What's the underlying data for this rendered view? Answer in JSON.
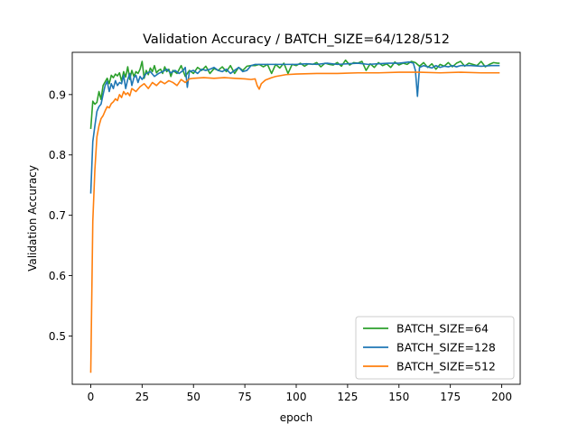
{
  "chart_data": {
    "type": "line",
    "title": "Validation Accuracy / BATCH_SIZE=64/128/512",
    "xlabel": "epoch",
    "ylabel": "Validation Accuracy",
    "xlim": [
      -9,
      209
    ],
    "ylim": [
      0.42,
      0.97
    ],
    "xticks": [
      0,
      25,
      50,
      75,
      100,
      125,
      150,
      175,
      200
    ],
    "yticks": [
      0.5,
      0.6,
      0.7,
      0.8,
      0.9
    ],
    "grid": false,
    "legend": "lower-right",
    "series": [
      {
        "name": "BATCH_SIZE=64",
        "color": "#2ca02c",
        "x": [
          0,
          1,
          2,
          3,
          4,
          5,
          6,
          7,
          8,
          9,
          10,
          11,
          12,
          13,
          14,
          15,
          16,
          17,
          18,
          19,
          20,
          21,
          22,
          23,
          24,
          25,
          26,
          27,
          28,
          29,
          30,
          31,
          32,
          33,
          34,
          35,
          36,
          37,
          38,
          39,
          40,
          42,
          44,
          46,
          48,
          50,
          52,
          54,
          56,
          58,
          60,
          62,
          64,
          66,
          68,
          70,
          72,
          74,
          76,
          78,
          80,
          82,
          84,
          86,
          88,
          90,
          92,
          94,
          96,
          98,
          100,
          102,
          104,
          106,
          108,
          110,
          112,
          114,
          116,
          118,
          120,
          122,
          124,
          126,
          128,
          130,
          132,
          134,
          136,
          138,
          140,
          142,
          144,
          146,
          148,
          150,
          152,
          154,
          156,
          158,
          160,
          162,
          164,
          166,
          168,
          170,
          172,
          174,
          176,
          178,
          180,
          182,
          184,
          186,
          188,
          190,
          192,
          194,
          196,
          198,
          199
        ],
        "y": [
          0.843,
          0.889,
          0.884,
          0.887,
          0.905,
          0.892,
          0.915,
          0.921,
          0.927,
          0.918,
          0.932,
          0.928,
          0.934,
          0.931,
          0.936,
          0.922,
          0.938,
          0.929,
          0.946,
          0.925,
          0.94,
          0.93,
          0.938,
          0.935,
          0.942,
          0.955,
          0.927,
          0.94,
          0.933,
          0.944,
          0.938,
          0.948,
          0.936,
          0.94,
          0.942,
          0.935,
          0.946,
          0.938,
          0.942,
          0.93,
          0.94,
          0.935,
          0.948,
          0.93,
          0.94,
          0.935,
          0.945,
          0.94,
          0.947,
          0.935,
          0.943,
          0.94,
          0.946,
          0.938,
          0.948,
          0.935,
          0.945,
          0.94,
          0.947,
          0.948,
          0.948,
          0.95,
          0.946,
          0.95,
          0.935,
          0.95,
          0.944,
          0.952,
          0.935,
          0.95,
          0.948,
          0.952,
          0.947,
          0.951,
          0.95,
          0.953,
          0.946,
          0.952,
          0.95,
          0.949,
          0.953,
          0.947,
          0.957,
          0.949,
          0.953,
          0.952,
          0.955,
          0.94,
          0.951,
          0.945,
          0.953,
          0.948,
          0.951,
          0.945,
          0.954,
          0.949,
          0.952,
          0.95,
          0.955,
          0.953,
          0.947,
          0.953,
          0.945,
          0.951,
          0.942,
          0.95,
          0.947,
          0.953,
          0.946,
          0.952,
          0.955,
          0.947,
          0.952,
          0.95,
          0.948,
          0.955,
          0.946,
          0.95,
          0.953,
          0.952,
          0.952
        ]
      },
      {
        "name": "BATCH_SIZE=128",
        "color": "#1f77b4",
        "x": [
          0,
          1,
          2,
          3,
          4,
          5,
          6,
          7,
          8,
          9,
          10,
          11,
          12,
          13,
          14,
          15,
          16,
          17,
          18,
          19,
          20,
          21,
          22,
          23,
          24,
          25,
          27,
          29,
          31,
          33,
          35,
          37,
          39,
          41,
          43,
          45,
          46,
          47,
          48,
          50,
          52,
          54,
          56,
          58,
          60,
          62,
          64,
          66,
          68,
          70,
          72,
          74,
          76,
          78,
          80,
          85,
          90,
          95,
          100,
          105,
          110,
          115,
          120,
          125,
          130,
          135,
          140,
          145,
          150,
          155,
          157,
          158,
          159,
          160,
          162,
          164,
          166,
          168,
          170,
          172,
          174,
          176,
          178,
          180,
          185,
          190,
          195,
          199
        ],
        "y": [
          0.736,
          0.822,
          0.848,
          0.872,
          0.88,
          0.884,
          0.9,
          0.915,
          0.922,
          0.905,
          0.918,
          0.91,
          0.923,
          0.915,
          0.92,
          0.918,
          0.932,
          0.91,
          0.925,
          0.935,
          0.915,
          0.928,
          0.932,
          0.92,
          0.93,
          0.925,
          0.935,
          0.938,
          0.93,
          0.935,
          0.938,
          0.942,
          0.936,
          0.94,
          0.935,
          0.94,
          0.945,
          0.912,
          0.938,
          0.94,
          0.935,
          0.942,
          0.94,
          0.942,
          0.945,
          0.94,
          0.938,
          0.942,
          0.935,
          0.94,
          0.945,
          0.938,
          0.94,
          0.948,
          0.95,
          0.95,
          0.95,
          0.95,
          0.95,
          0.951,
          0.95,
          0.952,
          0.95,
          0.951,
          0.952,
          0.95,
          0.951,
          0.952,
          0.952,
          0.954,
          0.952,
          0.94,
          0.897,
          0.945,
          0.948,
          0.946,
          0.944,
          0.948,
          0.945,
          0.947,
          0.946,
          0.948,
          0.946,
          0.948,
          0.948,
          0.947,
          0.948,
          0.948
        ]
      },
      {
        "name": "BATCH_SIZE=512",
        "color": "#ff7f0e",
        "x": [
          0,
          1,
          2,
          3,
          4,
          5,
          6,
          7,
          8,
          9,
          10,
          11,
          12,
          13,
          14,
          15,
          16,
          17,
          18,
          19,
          20,
          22,
          24,
          26,
          28,
          30,
          32,
          34,
          36,
          38,
          40,
          42,
          44,
          46,
          48,
          50,
          55,
          60,
          65,
          70,
          75,
          78,
          80,
          81,
          82,
          83,
          85,
          88,
          90,
          95,
          100,
          110,
          120,
          130,
          140,
          150,
          160,
          170,
          180,
          190,
          199
        ],
        "y": [
          0.439,
          0.69,
          0.775,
          0.83,
          0.848,
          0.86,
          0.865,
          0.873,
          0.88,
          0.878,
          0.885,
          0.888,
          0.893,
          0.89,
          0.9,
          0.895,
          0.905,
          0.9,
          0.903,
          0.898,
          0.91,
          0.905,
          0.913,
          0.918,
          0.91,
          0.92,
          0.915,
          0.922,
          0.918,
          0.923,
          0.92,
          0.915,
          0.925,
          0.92,
          0.926,
          0.927,
          0.928,
          0.927,
          0.928,
          0.927,
          0.926,
          0.925,
          0.926,
          0.915,
          0.909,
          0.918,
          0.924,
          0.928,
          0.93,
          0.933,
          0.934,
          0.935,
          0.935,
          0.936,
          0.936,
          0.937,
          0.937,
          0.936,
          0.937,
          0.936,
          0.936
        ]
      }
    ]
  }
}
